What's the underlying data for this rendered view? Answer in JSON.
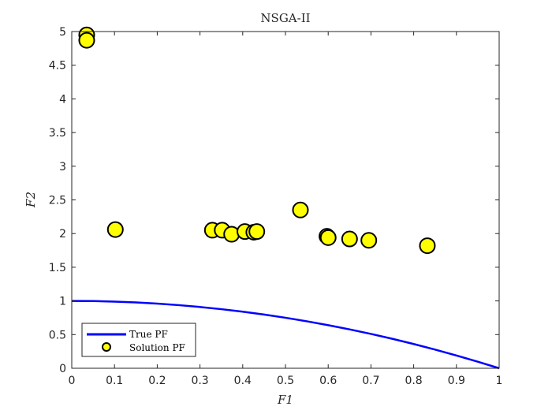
{
  "chart_data": {
    "type": "scatter",
    "title": "NSGA-II",
    "xlabel": "F1",
    "ylabel": "F2",
    "xlim": [
      0,
      1
    ],
    "ylim": [
      0,
      5
    ],
    "xticks": [
      0,
      0.1,
      0.2,
      0.3,
      0.4,
      0.5,
      0.6,
      0.7,
      0.8,
      0.9,
      1
    ],
    "yticks": [
      0,
      0.5,
      1,
      1.5,
      2,
      2.5,
      3,
      3.5,
      4,
      4.5,
      5
    ],
    "xtick_labels": [
      "0",
      "0.1",
      "0.2",
      "0.3",
      "0.4",
      "0.5",
      "0.6",
      "0.7",
      "0.8",
      "0.9",
      "1"
    ],
    "ytick_labels": [
      "0",
      "0.5",
      "1",
      "1.5",
      "2",
      "2.5",
      "3",
      "3.5",
      "4",
      "4.5",
      "5"
    ],
    "grid": false,
    "legend_position": "bottom-left",
    "series": [
      {
        "name": "True PF",
        "kind": "line",
        "color": "#0000ff",
        "x": [
          0,
          0.05,
          0.1,
          0.15,
          0.2,
          0.25,
          0.3,
          0.35,
          0.4,
          0.45,
          0.5,
          0.55,
          0.6,
          0.65,
          0.7,
          0.75,
          0.8,
          0.85,
          0.9,
          0.95,
          1
        ],
        "y": [
          1,
          0.9975,
          0.99,
          0.9775,
          0.96,
          0.9375,
          0.91,
          0.8775,
          0.84,
          0.7975,
          0.75,
          0.6975,
          0.64,
          0.5775,
          0.51,
          0.4375,
          0.36,
          0.2775,
          0.19,
          0.0975,
          0
        ]
      },
      {
        "name": "Solution PF",
        "kind": "scatter",
        "color": "#ffff00",
        "edge_color": "#000000",
        "x": [
          0.035,
          0.035,
          0.102,
          0.329,
          0.352,
          0.374,
          0.405,
          0.426,
          0.433,
          0.535,
          0.597,
          0.6,
          0.65,
          0.695,
          0.832
        ],
        "y": [
          4.95,
          4.87,
          2.06,
          2.05,
          2.05,
          1.99,
          2.03,
          2.02,
          2.03,
          2.35,
          1.96,
          1.94,
          1.92,
          1.9,
          1.82
        ]
      }
    ]
  }
}
